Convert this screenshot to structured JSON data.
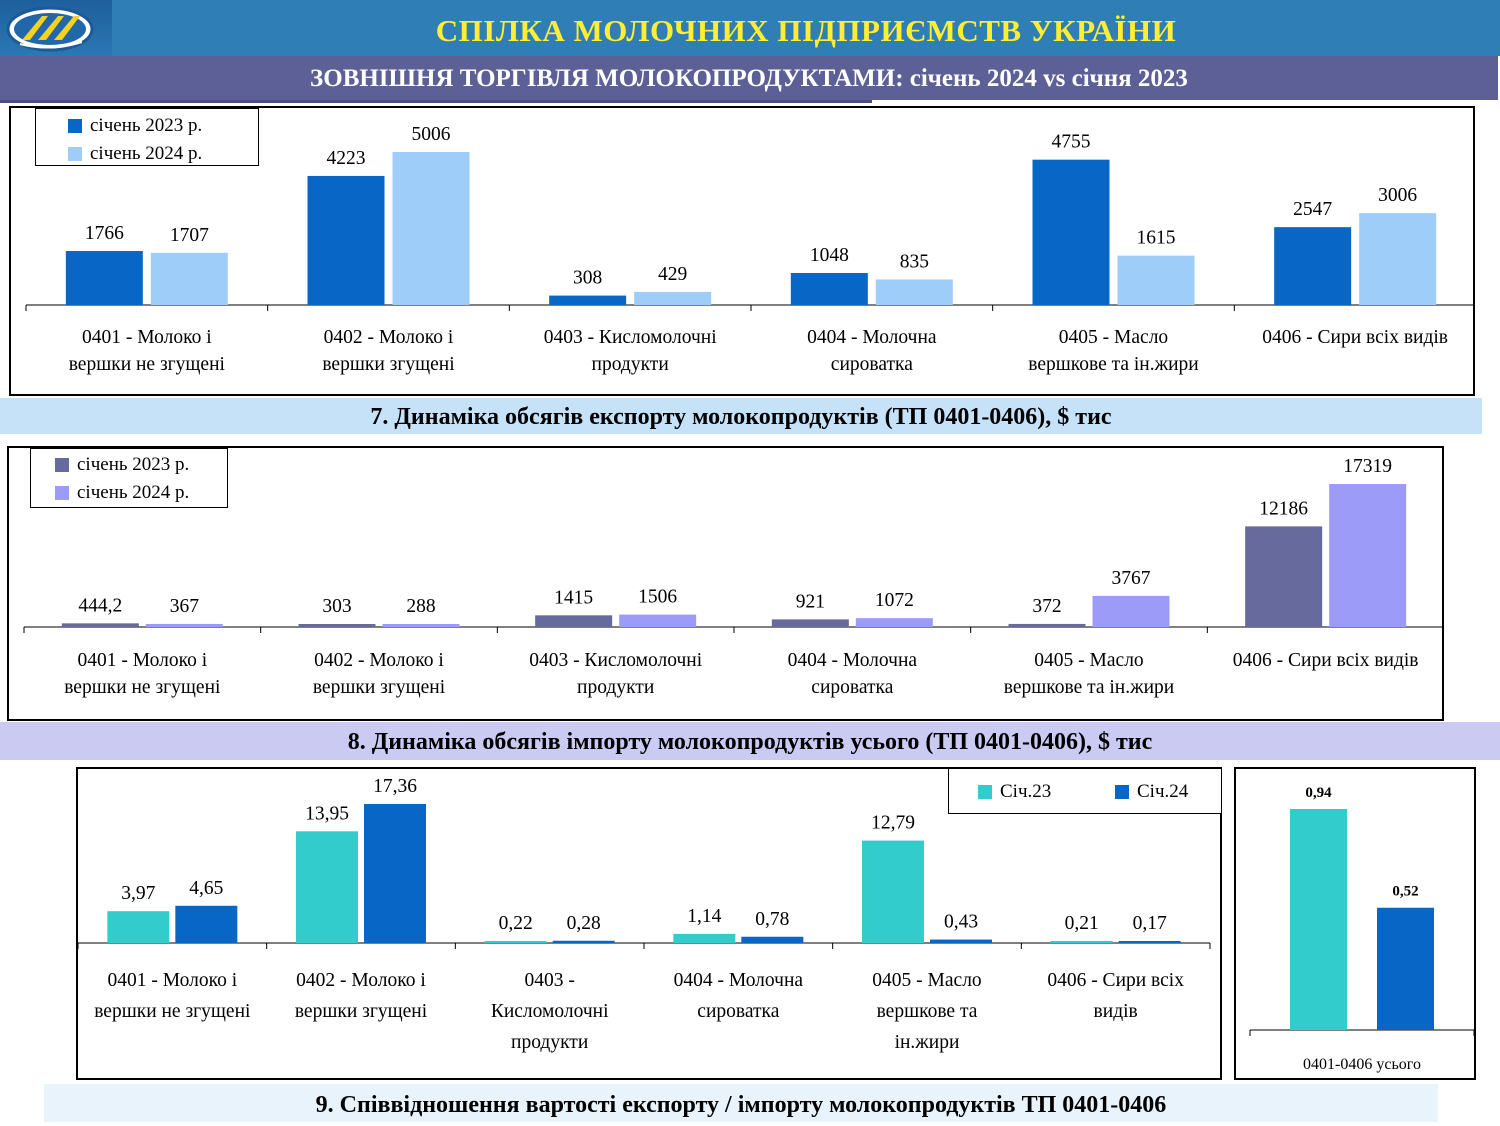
{
  "header": {
    "title": "СПІЛКА МОЛОЧНИХ ПІДПРИЄМСТВ УКРАЇНИ",
    "subtitle": "ЗОВНІШНЯ ТОРГІВЛЯ МОЛОКОПРОДУКТАМИ:  січень 2024 vs січня 2023"
  },
  "colors": {
    "header_bg": "#2f7fb6",
    "title_text": "#ffee33",
    "subheader_bg": "#5d5f97",
    "export_2023": "#0866c6",
    "export_2024": "#9ecdfa",
    "import_2023": "#676a9c",
    "import_2024": "#9c9cf8",
    "ratio_2023": "#33cccc",
    "ratio_2024": "#0866c6"
  },
  "chart_data": [
    {
      "type": "bar",
      "title": "7. Динаміка обсягів експорту молокопродуктів (ТП 0401-0406), $ тис",
      "categories": [
        [
          "0401 - Молоко і",
          "вершки не згущені"
        ],
        [
          "0402 - Молоко і",
          "вершки згущені"
        ],
        [
          "0403 - Кисломолочні",
          "продукти"
        ],
        [
          "0404 -  Молочна",
          "сироватка"
        ],
        [
          "0405 -  Масло",
          "вершкове та ін.жири"
        ],
        [
          "0406 - Сири всіх видів"
        ]
      ],
      "series": [
        {
          "name": "січень 2023 р.",
          "values": [
            1766,
            4223,
            308,
            1048,
            4755,
            2547
          ],
          "labels": [
            "1766",
            "4223",
            "308",
            "1048",
            "4755",
            "2547"
          ]
        },
        {
          "name": "січень 2024 р.",
          "values": [
            1707,
            5006,
            429,
            835,
            1615,
            3006
          ],
          "labels": [
            "1707",
            "5006",
            "429",
            "835",
            "1615",
            "3006"
          ]
        }
      ],
      "legend": "top-left"
    },
    {
      "type": "bar",
      "title": "8. Динаміка обсягів імпорту молокопродуктів усього (ТП 0401-0406), $ тис",
      "categories": [
        [
          "0401 - Молоко і",
          "вершки не згущені"
        ],
        [
          "0402 - Молоко і",
          "вершки згущені"
        ],
        [
          "0403 - Кисломолочні",
          "продукти"
        ],
        [
          "0404 -  Молочна",
          "сироватка"
        ],
        [
          "0405 -  Масло",
          "вершкове та ін.жири"
        ],
        [
          "0406 - Сири всіх видів"
        ]
      ],
      "series": [
        {
          "name": "січень 2023 р.",
          "values": [
            444.2,
            303,
            1415,
            921,
            372,
            12186
          ],
          "labels": [
            "444,2",
            "303",
            "1415",
            "921",
            "372",
            "12186"
          ]
        },
        {
          "name": "січень 2024 р.",
          "values": [
            367,
            288,
            1506,
            1072,
            3767,
            17319
          ],
          "labels": [
            "367",
            "288",
            "1506",
            "1072",
            "3767",
            "17319"
          ]
        }
      ],
      "legend": "top-left"
    },
    {
      "type": "bar",
      "title": "9. Співвідношення вартості експорту / імпорту молокопродуктів ТП 0401-0406",
      "categories": [
        [
          "0401 - Молоко і",
          "вершки не згущені"
        ],
        [
          "0402 - Молоко і",
          "вершки згущені"
        ],
        [
          "0403 -",
          "Кисломолочні",
          "продукти"
        ],
        [
          "0404 -  Молочна",
          "сироватка"
        ],
        [
          "0405 -  Масло",
          "вершкове та",
          "ін.жири"
        ],
        [
          "0406 - Сири всіх",
          "видів"
        ]
      ],
      "series": [
        {
          "name": "Січ.23",
          "values": [
            3.97,
            13.95,
            0.22,
            1.14,
            12.79,
            0.21
          ],
          "labels": [
            "3,97",
            "13,95",
            "0,22",
            "1,14",
            "12,79",
            "0,21"
          ]
        },
        {
          "name": "Січ.24",
          "values": [
            4.65,
            17.36,
            0.28,
            0.78,
            0.43,
            0.17
          ],
          "labels": [
            "4,65",
            "17,36",
            "0,28",
            "0,78",
            "0,43",
            "0,17"
          ]
        }
      ],
      "legend": "top-right"
    },
    {
      "type": "bar",
      "categories": [
        [
          "0401-0406 усього"
        ]
      ],
      "series": [
        {
          "name": "Січ.23",
          "values": [
            0.94
          ],
          "labels": [
            "0,94"
          ]
        },
        {
          "name": "Січ.24",
          "values": [
            0.52
          ],
          "labels": [
            "0,52"
          ]
        }
      ]
    }
  ]
}
